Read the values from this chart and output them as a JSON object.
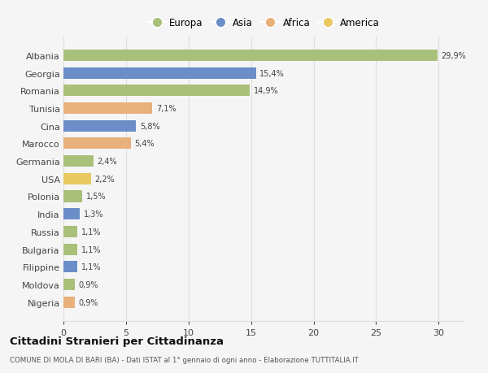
{
  "categories": [
    "Albania",
    "Georgia",
    "Romania",
    "Tunisia",
    "Cina",
    "Marocco",
    "Germania",
    "USA",
    "Polonia",
    "India",
    "Russia",
    "Bulgaria",
    "Filippine",
    "Moldova",
    "Nigeria"
  ],
  "values": [
    29.9,
    15.4,
    14.9,
    7.1,
    5.8,
    5.4,
    2.4,
    2.2,
    1.5,
    1.3,
    1.1,
    1.1,
    1.1,
    0.9,
    0.9
  ],
  "labels": [
    "29,9%",
    "15,4%",
    "14,9%",
    "7,1%",
    "5,8%",
    "5,4%",
    "2,4%",
    "2,2%",
    "1,5%",
    "1,3%",
    "1,1%",
    "1,1%",
    "1,1%",
    "0,9%",
    "0,9%"
  ],
  "colors": [
    "#a8c07a",
    "#6b8ec9",
    "#a8c07a",
    "#e8b07a",
    "#6b8ec9",
    "#e8b07a",
    "#a8c07a",
    "#e8c860",
    "#a8c07a",
    "#6b8ec9",
    "#a8c07a",
    "#a8c07a",
    "#6b8ec9",
    "#a8c07a",
    "#e8b07a"
  ],
  "legend_labels": [
    "Europa",
    "Asia",
    "Africa",
    "America"
  ],
  "legend_colors": [
    "#a8c07a",
    "#6b8ec9",
    "#e8b07a",
    "#e8c860"
  ],
  "xlim": [
    0,
    32
  ],
  "xticks": [
    0,
    5,
    10,
    15,
    20,
    25,
    30
  ],
  "title": "Cittadini Stranieri per Cittadinanza",
  "subtitle": "COMUNE DI MOLA DI BARI (BA) - Dati ISTAT al 1° gennaio di ogni anno - Elaborazione TUTTITALIA.IT",
  "bg_color": "#f5f5f5",
  "grid_color": "#dddddd",
  "bar_height": 0.65
}
